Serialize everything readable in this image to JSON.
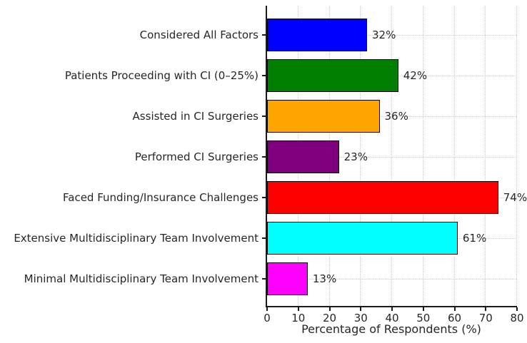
{
  "figure": {
    "background_color": "#ffffff",
    "text_color": "#262626",
    "grid_color": "#c9c9c9",
    "spine_color": "#1a1a1a",
    "bar_edge_color": "#000000"
  },
  "chart_data": {
    "type": "bar",
    "orientation": "horizontal",
    "xlabel": "Percentage of Respondents (%)",
    "xlim": [
      0,
      80
    ],
    "x_ticks": [
      0,
      10,
      20,
      30,
      40,
      50,
      60,
      70,
      80
    ],
    "grid": "dotted, vertical at each tick and horizontal at each bar center",
    "legend": "none",
    "categories": [
      "Considered All Factors",
      "Patients Proceeding with CI (0–25%)",
      "Assisted in CI Surgeries",
      "Performed CI Surgeries",
      "Faced Funding/Insurance Challenges",
      "Extensive Multidisciplinary Team Involvement",
      "Minimal Multidisciplinary Team Involvement"
    ],
    "values": [
      32,
      42,
      36,
      23,
      74,
      61,
      13
    ],
    "value_labels": [
      "32%",
      "42%",
      "36%",
      "23%",
      "74%",
      "61%",
      "13%"
    ],
    "bar_colors": [
      "#0000ff",
      "#008000",
      "#ffa500",
      "#800080",
      "#ff0000",
      "#00ffff",
      "#ff00ff"
    ]
  }
}
